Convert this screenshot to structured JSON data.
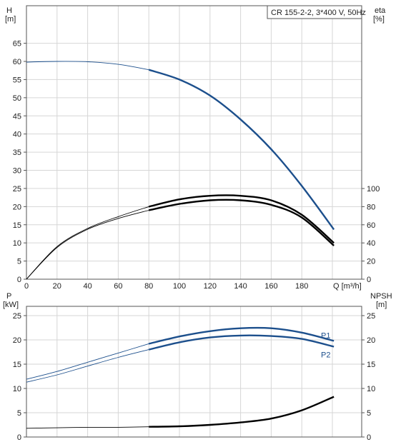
{
  "chart_data": [
    {
      "type": "line",
      "title": "CR 155-2-2, 3*400 V, 50Hz",
      "xlabel": "Q [m³/h]",
      "x_ticks": [
        "0",
        "20",
        "40",
        "60",
        "80",
        "100",
        "120",
        "140",
        "160",
        "180"
      ],
      "xlim": [
        0,
        200
      ],
      "left_axis": {
        "label": "H",
        "unit": "[m]",
        "range": [
          0,
          70
        ],
        "ticks": [
          "0",
          "5",
          "10",
          "15",
          "20",
          "25",
          "30",
          "35",
          "40",
          "45",
          "50",
          "55",
          "60",
          "65"
        ]
      },
      "right_axis": {
        "label": "eta",
        "unit": "[%]",
        "range": [
          0,
          100
        ],
        "ticks": [
          "0",
          "20",
          "40",
          "60",
          "80",
          "100"
        ]
      },
      "grid": true,
      "series": [
        {
          "name": "",
          "axis": "left",
          "color": "#1c4f8c",
          "x": [
            0,
            20,
            40,
            60,
            80,
            100,
            120,
            140,
            160,
            180,
            201
          ],
          "y": [
            59.8,
            60.0,
            59.9,
            59.2,
            57.7,
            55.0,
            50.6,
            44.0,
            35.8,
            25.7,
            13.7
          ]
        },
        {
          "name": "",
          "axis": "right",
          "color": "#000000",
          "x": [
            0,
            20,
            40,
            60,
            80,
            100,
            120,
            140,
            160,
            180,
            201
          ],
          "y": [
            0,
            36,
            56,
            69,
            80,
            88,
            92,
            92,
            87,
            71,
            40
          ]
        },
        {
          "name": "",
          "axis": "right",
          "color": "#000000",
          "x": [
            0,
            20,
            40,
            60,
            80,
            100,
            120,
            140,
            160,
            180,
            201
          ],
          "y": [
            0,
            35,
            55,
            67,
            76,
            83,
            87,
            87,
            82,
            68,
            37
          ]
        }
      ]
    },
    {
      "type": "line",
      "xlabel": "",
      "xlim": [
        0,
        200
      ],
      "left_axis": {
        "label": "P",
        "unit": "[kW]",
        "range": [
          0,
          28
        ],
        "ticks": [
          "0",
          "5",
          "10",
          "15",
          "20",
          "25"
        ]
      },
      "right_axis": {
        "label": "NPSH",
        "unit": "[m]",
        "range": [
          0,
          28
        ],
        "ticks": [
          "0",
          "5",
          "10",
          "15",
          "20",
          "25"
        ]
      },
      "grid": true,
      "series": [
        {
          "name": "P1",
          "axis": "left",
          "color": "#1c4f8c",
          "x": [
            0,
            20,
            40,
            60,
            80,
            100,
            120,
            140,
            160,
            180,
            201
          ],
          "y": [
            11.9,
            13.5,
            15.4,
            17.3,
            19.2,
            20.7,
            21.8,
            22.4,
            22.4,
            21.5,
            19.8
          ]
        },
        {
          "name": "P2",
          "axis": "left",
          "color": "#1c4f8c",
          "x": [
            0,
            20,
            40,
            60,
            80,
            100,
            120,
            140,
            160,
            180,
            201
          ],
          "y": [
            11.3,
            12.8,
            14.6,
            16.4,
            18.0,
            19.5,
            20.5,
            20.9,
            20.8,
            20.2,
            18.6
          ]
        },
        {
          "name": "",
          "axis": "right",
          "color": "#000000",
          "x": [
            0,
            20,
            40,
            60,
            80,
            100,
            120,
            140,
            160,
            180,
            201
          ],
          "y": [
            1.8,
            1.9,
            2.0,
            2.0,
            2.1,
            2.2,
            2.5,
            3.0,
            3.8,
            5.5,
            8.3
          ]
        }
      ]
    }
  ]
}
